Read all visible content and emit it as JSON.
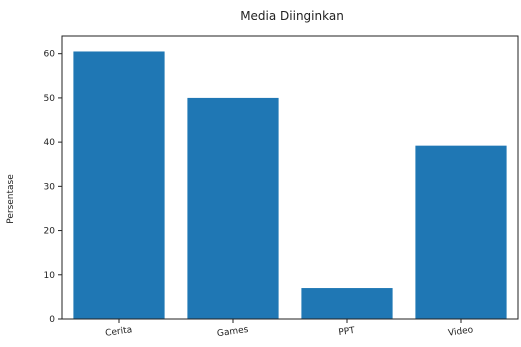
{
  "chart_data": {
    "type": "bar",
    "title": "Media Diinginkan",
    "xlabel": "",
    "ylabel": "Persentase",
    "categories": [
      "Cerita",
      "Games",
      "PPT",
      "Video"
    ],
    "values": [
      60.5,
      50,
      7,
      39.2
    ],
    "ylim": [
      0,
      64
    ],
    "yticks": [
      0,
      10,
      20,
      30,
      40,
      50,
      60
    ],
    "grid": false,
    "bar_color": "#1f77b4",
    "x_tick_rotation_deg": -8
  }
}
